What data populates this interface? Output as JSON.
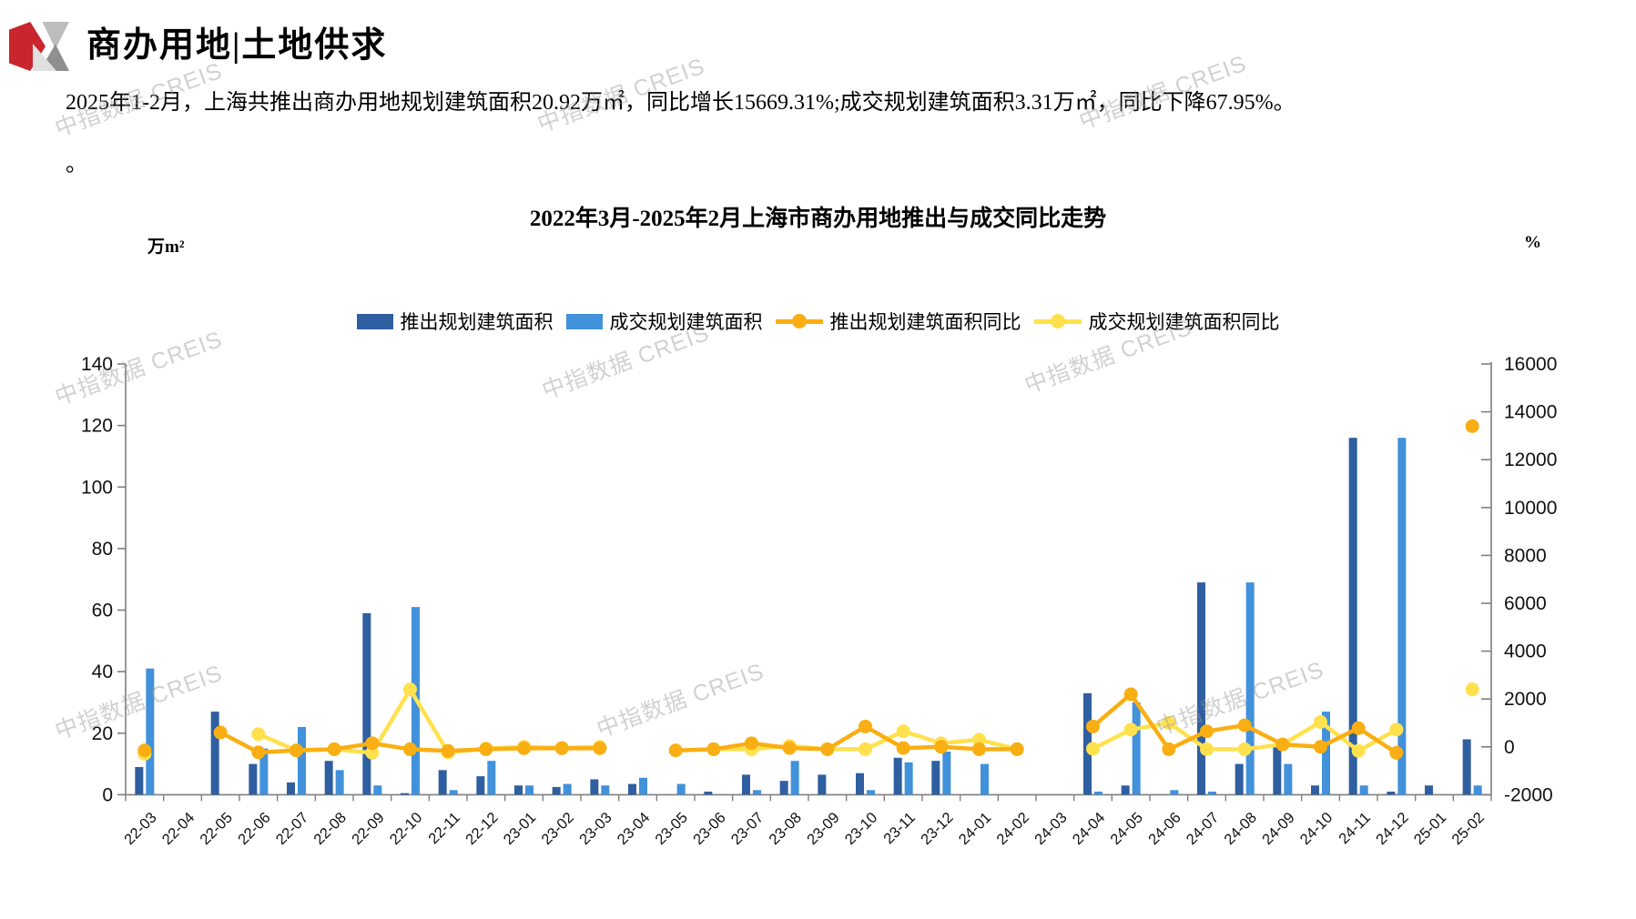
{
  "header": {
    "title": "商办用地|土地供求"
  },
  "paragraph": {
    "line1": "2025年1-2月，上海共推出商办用地规划建筑面积20.92万㎡，同比增长15669.31%;成交规划建筑面积3.31万㎡，同比下降67.95%。",
    "line2": "。"
  },
  "watermark": {
    "text": "中指数据 CREIS"
  },
  "chart_data": {
    "type": "bar+line",
    "title": "2022年3月-2025年2月上海市商办用地推出与成交同比走势",
    "left_axis": {
      "unit": "万m²",
      "min": 0,
      "max": 140,
      "step": 20
    },
    "right_axis": {
      "unit": "%",
      "min": -2000,
      "max": 16000,
      "step": 2000
    },
    "grid": false,
    "legend_position": "top",
    "categories": [
      "22-03",
      "22-04",
      "22-05",
      "22-06",
      "22-07",
      "22-08",
      "22-09",
      "22-10",
      "22-11",
      "22-12",
      "23-01",
      "23-02",
      "23-03",
      "23-04",
      "23-05",
      "23-06",
      "23-07",
      "23-08",
      "23-09",
      "23-10",
      "23-11",
      "23-12",
      "24-01",
      "24-02",
      "24-03",
      "24-04",
      "24-05",
      "24-06",
      "24-07",
      "24-08",
      "24-09",
      "24-10",
      "24-11",
      "24-12",
      "25-01",
      "25-02"
    ],
    "series": [
      {
        "name": "推出规划建筑面积",
        "type": "bar",
        "axis": "left",
        "color": "#2F5FA0",
        "values": [
          9,
          0,
          27,
          10,
          4,
          11,
          59,
          0.5,
          8,
          6,
          3,
          2.5,
          5,
          3.5,
          0,
          1,
          6.5,
          4.5,
          6.5,
          7,
          12,
          11,
          0,
          0,
          0,
          33,
          3,
          0,
          69,
          10,
          16,
          3,
          116,
          1,
          3,
          18
        ]
      },
      {
        "name": "成交规划建筑面积",
        "type": "bar",
        "axis": "left",
        "color": "#4191DB",
        "values": [
          41,
          0,
          0,
          15,
          22,
          8,
          3,
          61,
          1.5,
          11,
          3,
          3.5,
          3,
          5.5,
          3.5,
          0,
          1.5,
          11,
          0,
          1.5,
          10.5,
          14,
          10,
          0,
          0,
          1,
          30,
          1.5,
          1,
          69,
          10,
          27,
          3,
          116,
          0,
          3
        ]
      },
      {
        "name": "推出规划建筑面积同比",
        "type": "line",
        "axis": "right",
        "color": "#F9AE13",
        "values": [
          -150,
          null,
          600,
          -230,
          -150,
          -100,
          150,
          -100,
          -170,
          -100,
          -60,
          -60,
          -60,
          null,
          -150,
          -100,
          150,
          -50,
          -100,
          850,
          -50,
          0,
          -100,
          -100,
          null,
          850,
          2200,
          -100,
          650,
          900,
          100,
          0,
          780,
          -250,
          null,
          13400
        ]
      },
      {
        "name": "成交规划建筑面积同比",
        "type": "line",
        "axis": "right",
        "color": "#FFE14D",
        "values": [
          -290,
          null,
          null,
          530,
          -150,
          -100,
          -250,
          2400,
          -230,
          -70,
          0,
          -40,
          0,
          null,
          null,
          -100,
          -100,
          40,
          -100,
          -100,
          650,
          150,
          300,
          -100,
          null,
          -80,
          720,
          1000,
          -100,
          -100,
          100,
          1040,
          -170,
          720,
          null,
          2400
        ]
      }
    ]
  }
}
